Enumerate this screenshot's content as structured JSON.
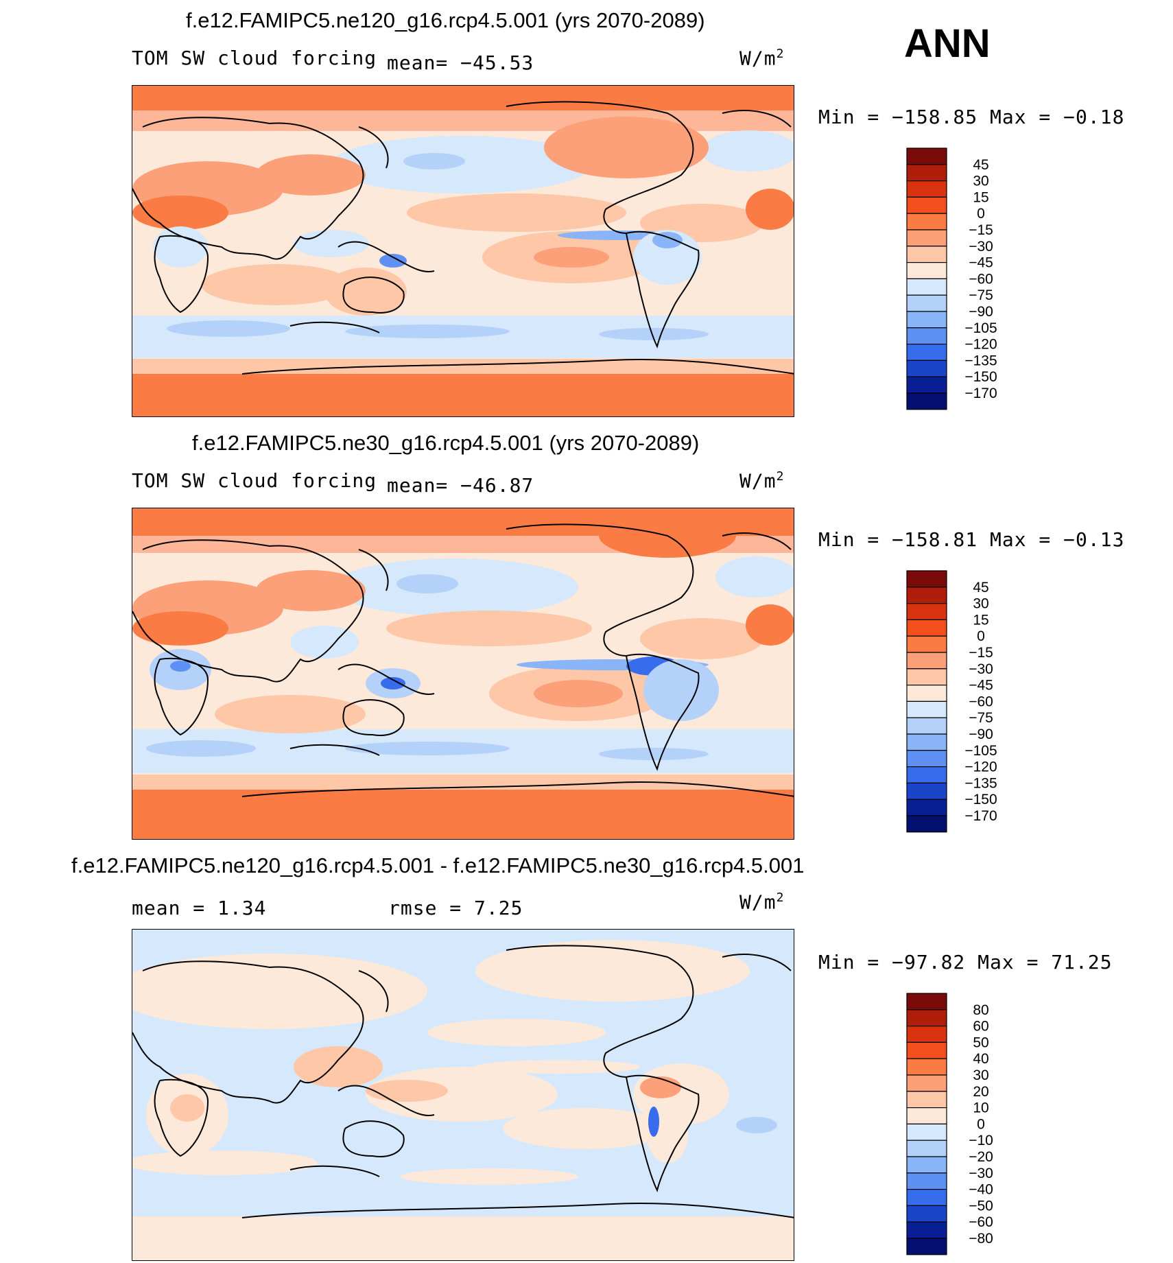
{
  "header": {
    "season": "ANN"
  },
  "panels": [
    {
      "title": "f.e12.FAMIPC5.ne120_g16.rcp4.5.001 (yrs 2070-2089)",
      "variable": "TOM SW cloud forcing",
      "mean_text": "mean=  −45.53",
      "units": "W/m",
      "units_sup": "2",
      "minmax_text": "Min  =  −158.85  Max  =   −0.18"
    },
    {
      "title": "f.e12.FAMIPC5.ne30_g16.rcp4.5.001 (yrs 2070-2089)",
      "variable": "TOM SW cloud forcing",
      "mean_text": "mean=  −46.87",
      "units": "W/m",
      "units_sup": "2",
      "minmax_text": "Min  =  −158.81  Max  =   −0.13"
    },
    {
      "title": "f.e12.FAMIPC5.ne120_g16.rcp4.5.001 - f.e12.FAMIPC5.ne30_g16.rcp4.5.001",
      "mean_text": "mean  =     1.34",
      "rmse_text": "rmse  =     7.25",
      "units": "W/m",
      "units_sup": "2",
      "minmax_text": "Min  =  −97.82  Max  =    71.25"
    }
  ],
  "chart_data": [
    {
      "type": "heatmap",
      "title": "f.e12.FAMIPC5.ne120_g16.rcp4.5.001 (yrs 2070-2089)",
      "variable": "TOM SW cloud forcing",
      "units": "W/m2",
      "mean": -45.53,
      "min": -158.85,
      "max": -0.18,
      "colorbar_levels": [
        45,
        30,
        15,
        0,
        -15,
        -30,
        -45,
        -60,
        -75,
        -90,
        -105,
        -120,
        -135,
        -150,
        -170
      ],
      "colorbar_colors": [
        "#7b0a0a",
        "#b01e0b",
        "#d8330e",
        "#f24f1c",
        "#fb7b45",
        "#fca07a",
        "#fdc7a8",
        "#fde9da",
        "#d6e8fb",
        "#b4d1fa",
        "#8ab4f8",
        "#5f90f3",
        "#376cec",
        "#1b45c8",
        "#0b1f95",
        "#031070"
      ]
    },
    {
      "type": "heatmap",
      "title": "f.e12.FAMIPC5.ne30_g16.rcp4.5.001 (yrs 2070-2089)",
      "variable": "TOM SW cloud forcing",
      "units": "W/m2",
      "mean": -46.87,
      "min": -158.81,
      "max": -0.13,
      "colorbar_levels": [
        45,
        30,
        15,
        0,
        -15,
        -30,
        -45,
        -60,
        -75,
        -90,
        -105,
        -120,
        -135,
        -150,
        -170
      ],
      "colorbar_colors": [
        "#7b0a0a",
        "#b01e0b",
        "#d8330e",
        "#f24f1c",
        "#fb7b45",
        "#fca07a",
        "#fdc7a8",
        "#fde9da",
        "#d6e8fb",
        "#b4d1fa",
        "#8ab4f8",
        "#5f90f3",
        "#376cec",
        "#1b45c8",
        "#0b1f95",
        "#031070"
      ]
    },
    {
      "type": "heatmap",
      "title": "f.e12.FAMIPC5.ne120_g16.rcp4.5.001 - f.e12.FAMIPC5.ne30_g16.rcp4.5.001",
      "units": "W/m2",
      "mean": 1.34,
      "rmse": 7.25,
      "min": -97.82,
      "max": 71.25,
      "colorbar_levels": [
        80,
        60,
        50,
        40,
        30,
        20,
        10,
        0,
        -10,
        -20,
        -30,
        -40,
        -50,
        -60,
        -80
      ],
      "colorbar_colors": [
        "#7b0a0a",
        "#b01e0b",
        "#d8330e",
        "#f24f1c",
        "#fb7b45",
        "#fca07a",
        "#fdc7a8",
        "#fde9da",
        "#d6e8fb",
        "#b4d1fa",
        "#8ab4f8",
        "#5f90f3",
        "#376cec",
        "#1b45c8",
        "#0b1f95",
        "#031070"
      ]
    }
  ]
}
